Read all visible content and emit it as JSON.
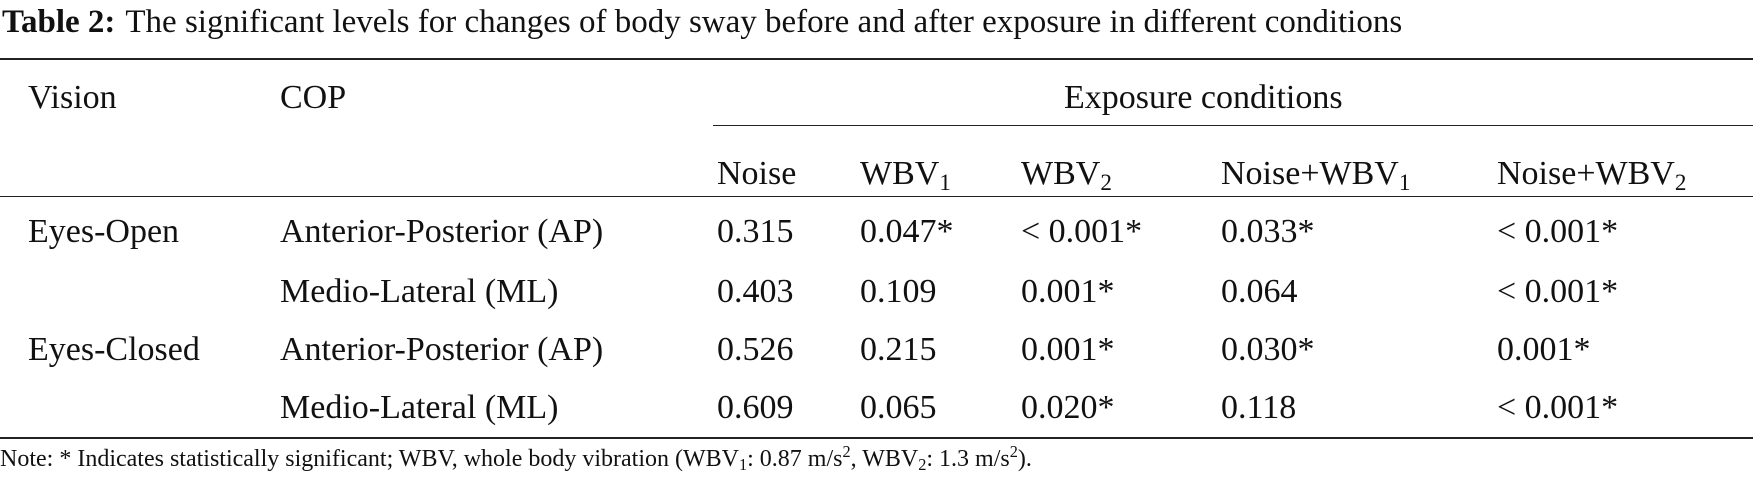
{
  "caption": {
    "label": "Table 2:",
    "text": "The significant levels for changes of body sway before and after exposure in different conditions"
  },
  "headers": {
    "vision": "Vision",
    "cop": "COP",
    "exposure": "Exposure conditions",
    "noise": "Noise",
    "wbv1_base": "WBV",
    "wbv1_sub": "1",
    "wbv2_base": "WBV",
    "wbv2_sub": "2",
    "nwbv1_base": "Noise+WBV",
    "nwbv1_sub": "1",
    "nwbv2_base": "Noise+WBV",
    "nwbv2_sub": "2"
  },
  "rows": [
    {
      "vision": "Eyes-Open",
      "cop": "Anterior-Posterior (AP)",
      "noise": "0.315",
      "wbv1": "0.047*",
      "wbv2": "< 0.001*",
      "nwbv1": "0.033*",
      "nwbv2": "< 0.001*"
    },
    {
      "vision": "",
      "cop": "Medio-Lateral (ML)",
      "noise": "0.403",
      "wbv1": "0.109",
      "wbv2": "0.001*",
      "nwbv1": "0.064",
      "nwbv2": "< 0.001*"
    },
    {
      "vision": "Eyes-Closed",
      "cop": "Anterior-Posterior (AP)",
      "noise": "0.526",
      "wbv1": "0.215",
      "wbv2": "0.001*",
      "nwbv1": "0.030*",
      "nwbv2": "0.001*"
    },
    {
      "vision": "",
      "cop": "Medio-Lateral (ML)",
      "noise": "0.609",
      "wbv1": "0.065",
      "wbv2": "0.020*",
      "nwbv1": "0.118",
      "nwbv2": "< 0.001*"
    }
  ],
  "note": {
    "p1": "Note: * Indicates statistically significant; WBV, whole body vibration (WBV",
    "s1": "1",
    "p2": ": 0.87 m/s",
    "e1": "2",
    "p3": ", WBV",
    "s2": "2",
    "p4": ": 1.3 m/s",
    "e2": "2",
    "p5": ")."
  }
}
